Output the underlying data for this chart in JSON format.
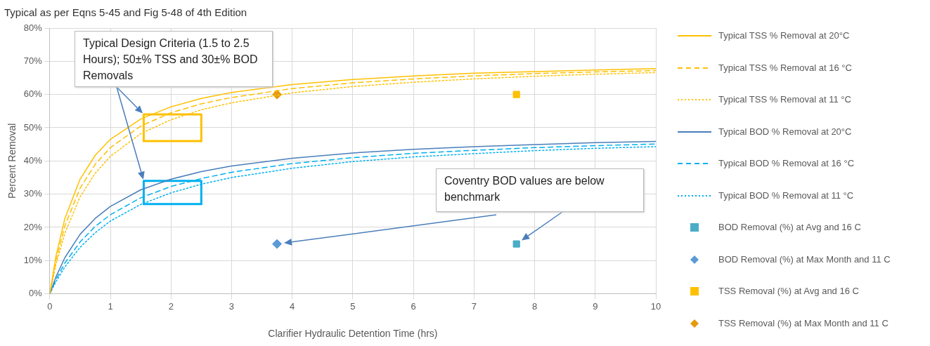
{
  "chart_data": {
    "type": "line",
    "title": "Typical as per Eqns 5-45 and Fig 5-48 of 4th Edition",
    "xlabel": "Clarifier Hydraulic Detention Time (hrs)",
    "ylabel": "Percent Removal",
    "xlim": [
      0,
      10
    ],
    "xticks": [
      0,
      1,
      2,
      3,
      4,
      5,
      6,
      7,
      8,
      9,
      10
    ],
    "ylim": [
      0,
      80
    ],
    "yticks": [
      {
        "value": 0,
        "label": "0%"
      },
      {
        "value": 10,
        "label": "10%"
      },
      {
        "value": 20,
        "label": "20%"
      },
      {
        "value": 30,
        "label": "30%"
      },
      {
        "value": 40,
        "label": "40%"
      },
      {
        "value": 50,
        "label": "50%"
      },
      {
        "value": 60,
        "label": "60%"
      },
      {
        "value": 70,
        "label": "70%"
      },
      {
        "value": 80,
        "label": "80%"
      }
    ],
    "grid": true,
    "legend": "right",
    "marker": "none",
    "annotations": [
      {
        "text": "Typical Design Criteria (1.5 to 2.5 Hours); 50±% TSS and 30±% BOD Removals",
        "x": 1.55,
        "y": 54
      },
      "Coventry BOD values are below benchmark"
    ],
    "series": [
      {
        "name": "Typical TSS % Removal at 20°C",
        "color": "#ffc000",
        "line_style": "solid",
        "x": [
          0,
          0.1,
          0.25,
          0.5,
          0.75,
          1,
          1.5,
          2,
          2.5,
          3,
          4,
          5,
          6,
          7,
          8,
          9,
          10
        ],
        "values": [
          0,
          11.2,
          22.7,
          34.5,
          41.7,
          46.5,
          52.6,
          56.3,
          58.8,
          60.6,
          63.0,
          64.5,
          65.6,
          66.4,
          66.9,
          67.4,
          67.8
        ]
      },
      {
        "name": "Typical TSS % Removal at 16 °C",
        "color": "#ffc000",
        "line_style": "dashed",
        "x": [
          0,
          0.1,
          0.25,
          0.5,
          0.75,
          1,
          1.5,
          2,
          2.5,
          3,
          4,
          5,
          6,
          7,
          8,
          9,
          10
        ],
        "values": [
          0,
          9.9,
          20.5,
          31.8,
          39.0,
          44.0,
          50.5,
          54.5,
          57.2,
          59.1,
          61.8,
          63.5,
          64.7,
          65.6,
          66.3,
          66.8,
          67.2
        ]
      },
      {
        "name": "Typical TSS % Removal at 11 °C",
        "color": "#ffc000",
        "line_style": "dotted",
        "x": [
          0,
          0.1,
          0.25,
          0.5,
          0.75,
          1,
          1.5,
          2,
          2.5,
          3,
          4,
          5,
          6,
          7,
          8,
          9,
          10
        ],
        "values": [
          0,
          8.7,
          18.3,
          29.2,
          36.3,
          41.4,
          48.2,
          52.4,
          55.4,
          57.5,
          60.5,
          62.4,
          63.7,
          64.7,
          65.5,
          66.1,
          66.6
        ]
      },
      {
        "name": "Typical BOD % Removal at 20°C",
        "color": "#4a7ebb",
        "line_style": "solid",
        "x": [
          0,
          0.1,
          0.25,
          0.5,
          0.75,
          1,
          1.5,
          2,
          2.5,
          3,
          4,
          5,
          6,
          7,
          8,
          9,
          10
        ],
        "values": [
          0,
          5.0,
          10.9,
          17.9,
          22.7,
          26.3,
          31.3,
          34.5,
          36.8,
          38.5,
          40.8,
          42.4,
          43.5,
          44.3,
          44.9,
          45.5,
          45.9
        ]
      },
      {
        "name": "Typical BOD % Removal at 16 °C",
        "color": "#00b0f0",
        "line_style": "dashed",
        "x": [
          0,
          0.1,
          0.25,
          0.5,
          0.75,
          1,
          1.5,
          2,
          2.5,
          3,
          4,
          5,
          6,
          7,
          8,
          9,
          10
        ],
        "values": [
          0,
          4.2,
          9.3,
          15.6,
          20.3,
          23.8,
          28.9,
          32.3,
          34.7,
          36.6,
          39.2,
          41.0,
          42.3,
          43.2,
          44.0,
          44.6,
          45.1
        ]
      },
      {
        "name": "Typical BOD % Removal at 11 °C",
        "color": "#00b0f0",
        "line_style": "dotted",
        "x": [
          0,
          0.1,
          0.25,
          0.5,
          0.75,
          1,
          1.5,
          2,
          2.5,
          3,
          4,
          5,
          6,
          7,
          8,
          9,
          10
        ],
        "values": [
          0,
          3.6,
          8.1,
          14.0,
          18.4,
          21.9,
          26.9,
          30.4,
          33.0,
          35.0,
          37.8,
          39.8,
          41.2,
          42.2,
          43.1,
          43.8,
          44.3
        ]
      },
      {
        "name": "BOD Removal (%) at Avg and 16 C",
        "type": "scatter",
        "marker": "square",
        "color": "#4bacc6",
        "x": [
          7.7
        ],
        "values": [
          15
        ]
      },
      {
        "name": "BOD Removal (%) at Max Month and 11 C",
        "type": "scatter",
        "marker": "diamond",
        "color": "#5b9bd5",
        "x": [
          3.75
        ],
        "values": [
          15
        ]
      },
      {
        "name": "TSS Removal (%) at Avg and 16 C",
        "type": "scatter",
        "marker": "square",
        "color": "#ffc000",
        "x": [
          7.7
        ],
        "values": [
          60
        ]
      },
      {
        "name": "TSS Removal (%) at Max Month and 11 C",
        "type": "scatter",
        "marker": "diamond",
        "color": "#e49b0f",
        "x": [
          3.75
        ],
        "values": [
          60
        ]
      },
      {
        "color": "#ffc000",
        "line_style": "solid",
        "x": [
          1.55,
          1.55,
          2.5,
          2.5
        ],
        "values": [
          46,
          54,
          54,
          46
        ]
      },
      {
        "color": "#00b0f0",
        "line_style": "solid",
        "x": [
          1.55,
          1.55,
          2.5,
          2.5
        ],
        "values": [
          27,
          34,
          34,
          27
        ]
      },
      {
        "color": "#ffc000",
        "line_style": "solid",
        "x": [
          1.55,
          2.5
        ],
        "values": [
          46,
          46
        ]
      },
      {
        "color": "#00b0f0",
        "line_style": "solid",
        "x": [
          1.55,
          2.5
        ],
        "values": [
          27,
          27
        ]
      }
    ]
  }
}
